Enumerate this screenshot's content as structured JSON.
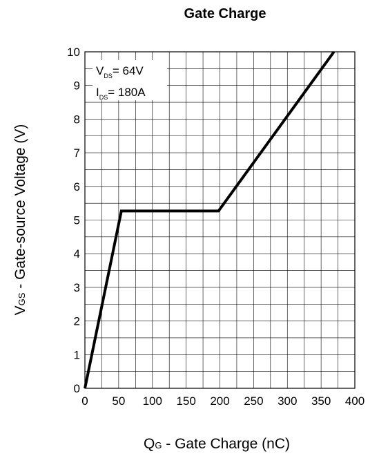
{
  "chart_data": {
    "type": "line",
    "title": "Gate Charge",
    "xlabel": {
      "main": "Q",
      "sub": "G",
      "rest": " - Gate Charge (nC)"
    },
    "ylabel": {
      "main": "V",
      "sub": "GS",
      "rest": " - Gate-source Voltage (V)"
    },
    "xlim": [
      0,
      400
    ],
    "ylim": [
      0,
      10
    ],
    "x_ticks": [
      0,
      50,
      100,
      150,
      200,
      250,
      300,
      350,
      400
    ],
    "y_ticks": [
      0,
      1,
      2,
      3,
      4,
      5,
      6,
      7,
      8,
      9,
      10
    ],
    "x_minor_step": 25,
    "y_minor_step": 0.5,
    "grid": true,
    "series": [
      {
        "x": [
          0,
          54,
          198,
          369
        ],
        "y": [
          0,
          5.27,
          5.27,
          10
        ]
      }
    ],
    "annotations": [
      {
        "main": "V",
        "sub": "DS",
        "rest": "= 64V"
      },
      {
        "main": "I",
        "sub": "DS",
        "rest": "= 180A"
      }
    ]
  }
}
